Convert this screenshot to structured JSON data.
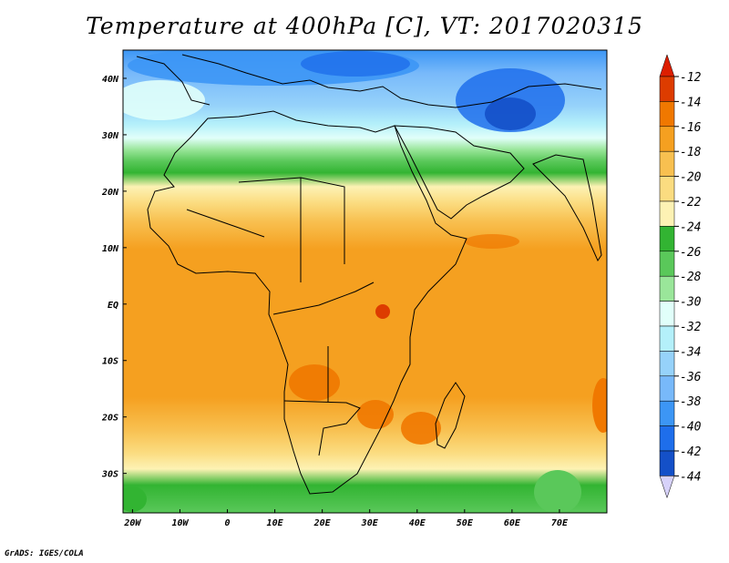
{
  "title": "Temperature at 400hPa [C], VT: 2017020315",
  "credit": "GrADS: IGES/COLA",
  "map": {
    "lon_range": [
      -22,
      80
    ],
    "lat_range": [
      -37,
      45
    ],
    "lon_ticks": [
      {
        "value": -20,
        "label": "20W"
      },
      {
        "value": -10,
        "label": "10W"
      },
      {
        "value": 0,
        "label": "0"
      },
      {
        "value": 10,
        "label": "10E"
      },
      {
        "value": 20,
        "label": "20E"
      },
      {
        "value": 30,
        "label": "30E"
      },
      {
        "value": 40,
        "label": "40E"
      },
      {
        "value": 50,
        "label": "50E"
      },
      {
        "value": 60,
        "label": "60E"
      },
      {
        "value": 70,
        "label": "70E"
      }
    ],
    "lat_ticks": [
      {
        "value": 40,
        "label": "40N"
      },
      {
        "value": 30,
        "label": "30N"
      },
      {
        "value": 20,
        "label": "20N"
      },
      {
        "value": 10,
        "label": "10N"
      },
      {
        "value": 0,
        "label": "EQ"
      },
      {
        "value": -10,
        "label": "10S"
      },
      {
        "value": -20,
        "label": "20S"
      },
      {
        "value": -30,
        "label": "30S"
      }
    ]
  },
  "colorbar": {
    "levels": [
      {
        "label": "-12",
        "color": "#dd3c00"
      },
      {
        "label": "-14",
        "color": "#f07800"
      },
      {
        "label": "-16",
        "color": "#f5a020"
      },
      {
        "label": "-18",
        "color": "#f8c050"
      },
      {
        "label": "-20",
        "color": "#fbdc80"
      },
      {
        "label": "-22",
        "color": "#fdf2b4"
      },
      {
        "label": "-24",
        "color": "#32b432"
      },
      {
        "label": "-26",
        "color": "#5ac85a"
      },
      {
        "label": "-28",
        "color": "#9ae69a"
      },
      {
        "label": "-30",
        "color": "#e1fffa"
      },
      {
        "label": "-32",
        "color": "#b4f0fa"
      },
      {
        "label": "-34",
        "color": "#96d2fa"
      },
      {
        "label": "-36",
        "color": "#78b9fa"
      },
      {
        "label": "-38",
        "color": "#3c96f5"
      },
      {
        "label": "-40",
        "color": "#1e6eeb"
      },
      {
        "label": "-42",
        "color": "#1450c8"
      },
      {
        "label": "-44",
        "color": "#0a2882"
      }
    ],
    "top_arrow_color": "#dc1e00",
    "bottom_arrow_color": "#d7d2fa"
  }
}
